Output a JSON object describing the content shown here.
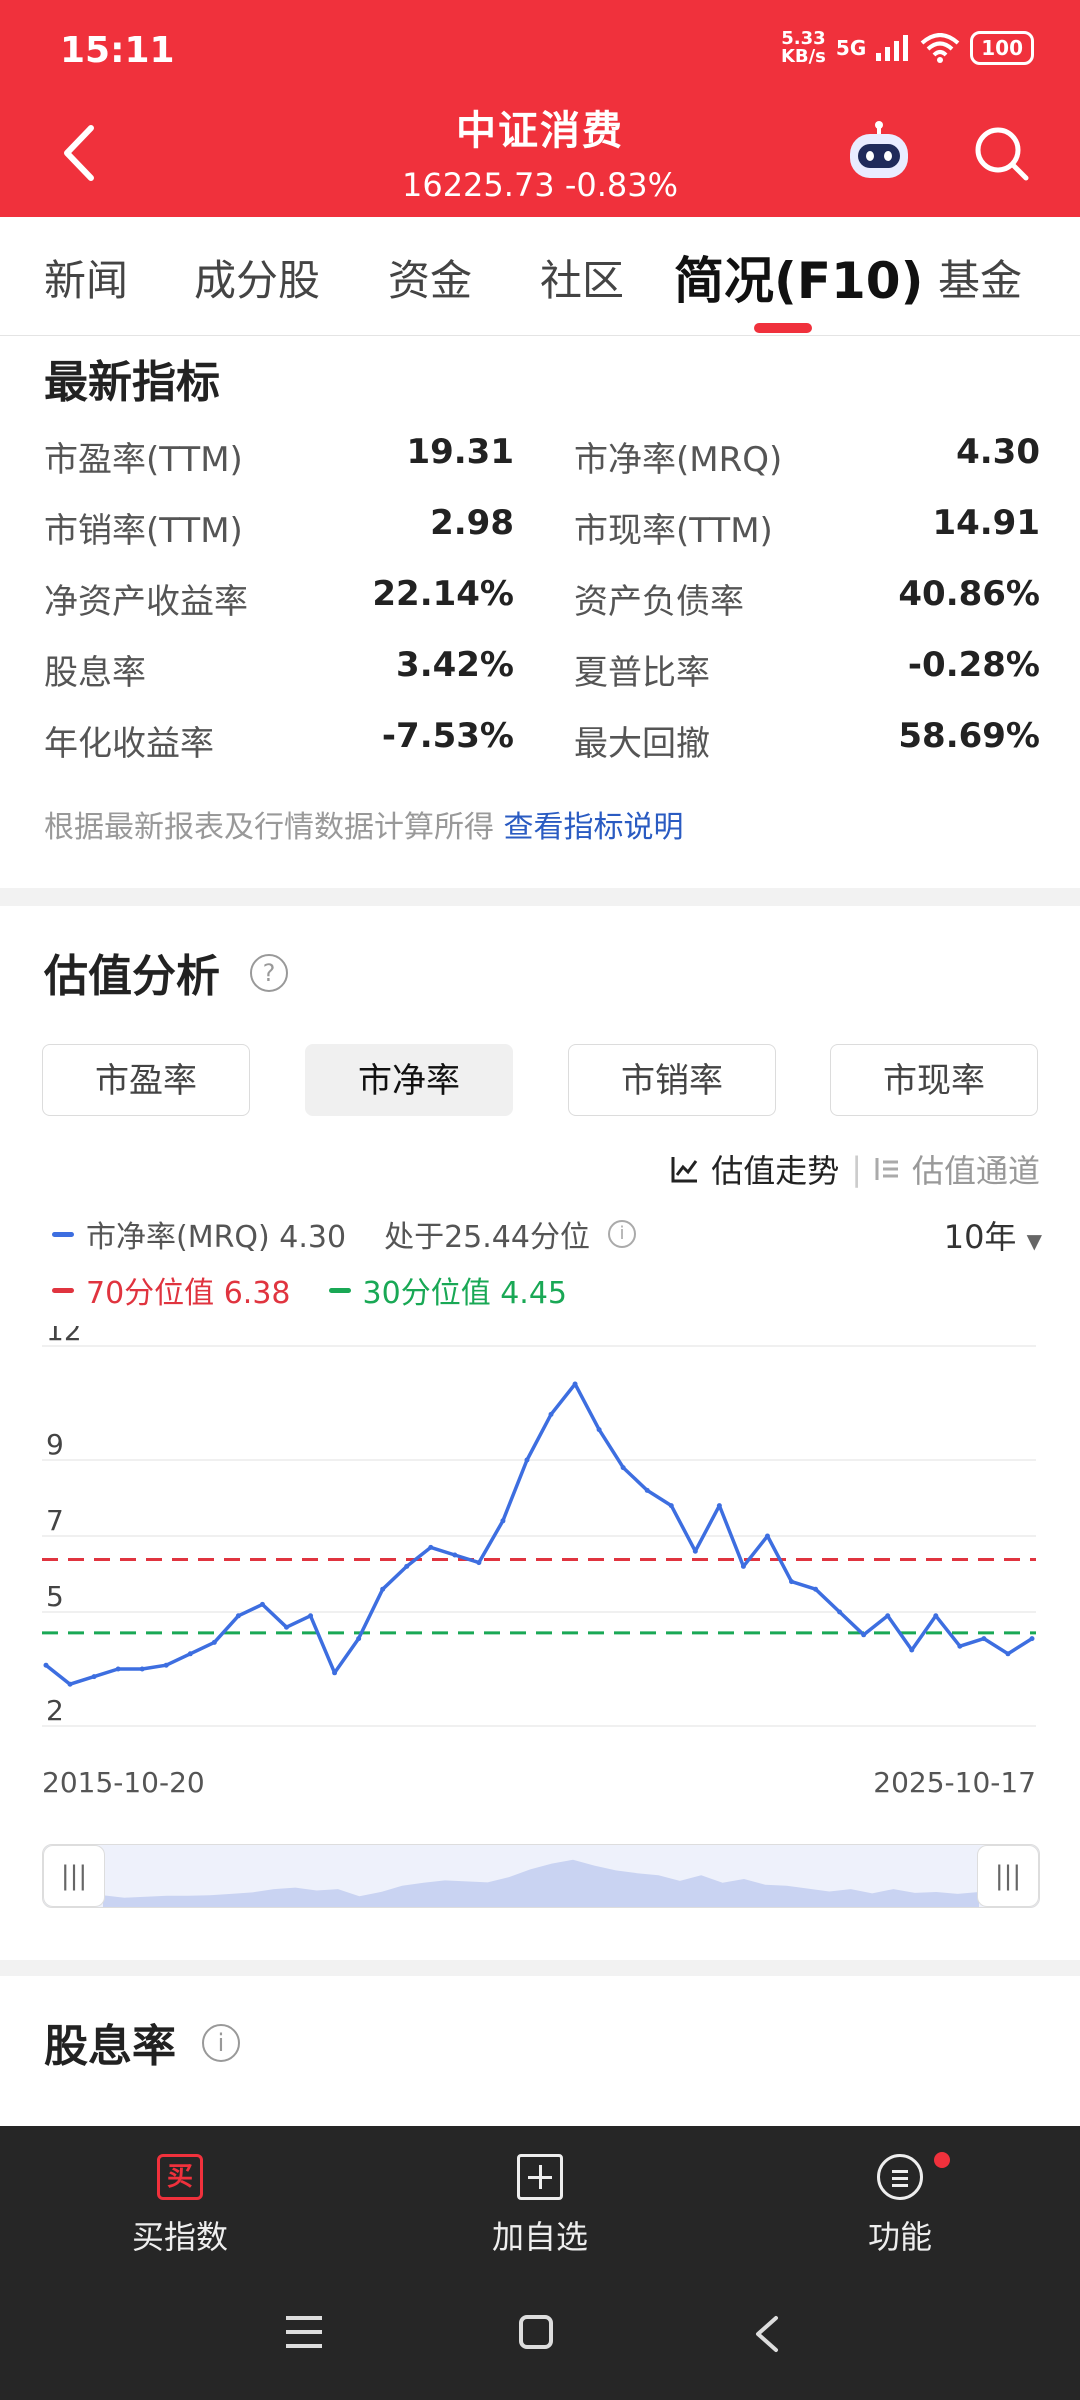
{
  "status": {
    "time": "15:11",
    "net_speed_value": "5.33",
    "net_speed_unit": "KB/s",
    "network": "5G",
    "battery": "100"
  },
  "header": {
    "title": "中证消费",
    "subtitle": "16225.73 -0.83%",
    "bg_color": "#f0313c"
  },
  "tabs": [
    {
      "label": "新闻",
      "active": false
    },
    {
      "label": "成分股",
      "active": false
    },
    {
      "label": "资金",
      "active": false
    },
    {
      "label": "社区",
      "active": false
    },
    {
      "label": "简况(F10)",
      "active": true
    },
    {
      "label": "基金",
      "active": false
    }
  ],
  "metrics": {
    "title": "最新指标",
    "rows": [
      {
        "l1": "市盈率(TTM)",
        "v1": "19.31",
        "l2": "市净率(MRQ)",
        "v2": "4.30"
      },
      {
        "l1": "市销率(TTM)",
        "v1": "2.98",
        "l2": "市现率(TTM)",
        "v2": "14.91"
      },
      {
        "l1": "净资产收益率",
        "v1": "22.14%",
        "l2": "资产负债率",
        "v2": "40.86%"
      },
      {
        "l1": "股息率",
        "v1": "3.42%",
        "l2": "夏普比率",
        "v2": "-0.28%"
      },
      {
        "l1": "年化收益率",
        "v1": "-7.53%",
        "l2": "最大回撤",
        "v2": "58.69%"
      }
    ],
    "note": "根据最新报表及行情数据计算所得",
    "note_link": "查看指标说明"
  },
  "valuation": {
    "title": "估值分析",
    "help": "?",
    "segments": [
      {
        "label": "市盈率",
        "active": false
      },
      {
        "label": "市净率",
        "active": true
      },
      {
        "label": "市销率",
        "active": false
      },
      {
        "label": "市现率",
        "active": false
      }
    ],
    "view_trend": "估值走势",
    "view_channel": "估值通道",
    "legend_series": "市净率(MRQ) 4.30",
    "legend_percentile": "处于25.44分位",
    "legend_p70": "70分位值 6.38",
    "legend_p30": "30分位值 4.45",
    "period": "10年",
    "date_start": "2015-10-20",
    "date_end": "2025-10-17",
    "nav_handle": "|||",
    "colors": {
      "series": "#3d6ee0",
      "p70": "#e0343f",
      "p30": "#19a855"
    }
  },
  "chart_data": {
    "type": "line",
    "y_ticks": [
      "12",
      "9",
      "7",
      "5",
      "2"
    ],
    "ylim": [
      2,
      12
    ],
    "x_start": "2015-10-20",
    "x_end": "2025-10-17",
    "reference_lines": [
      {
        "name": "70分位值",
        "value": 6.38
      },
      {
        "name": "30分位值",
        "value": 4.45
      }
    ],
    "series": [
      {
        "name": "市净率(MRQ)",
        "x": [
          "2015-10",
          "2016-01",
          "2016-04",
          "2016-07",
          "2016-10",
          "2017-01",
          "2017-04",
          "2017-07",
          "2017-10",
          "2018-01",
          "2018-04",
          "2018-07",
          "2018-10",
          "2019-01",
          "2019-04",
          "2019-07",
          "2019-10",
          "2020-01",
          "2020-04",
          "2020-07",
          "2020-10",
          "2021-01",
          "2021-02",
          "2021-04",
          "2021-07",
          "2021-10",
          "2022-01",
          "2022-04",
          "2022-07",
          "2022-10",
          "2023-01",
          "2023-04",
          "2023-07",
          "2023-10",
          "2024-01",
          "2024-04",
          "2024-07",
          "2024-10",
          "2025-01",
          "2025-04",
          "2025-07",
          "2025-10"
        ],
        "values": [
          3.6,
          3.1,
          3.3,
          3.5,
          3.5,
          3.6,
          3.9,
          4.2,
          4.9,
          5.2,
          4.6,
          4.9,
          3.4,
          4.3,
          5.6,
          6.2,
          6.7,
          6.5,
          6.3,
          7.4,
          9.0,
          10.2,
          11.0,
          9.8,
          8.8,
          8.2,
          7.8,
          6.6,
          7.8,
          6.2,
          7.0,
          5.8,
          5.6,
          5.0,
          4.4,
          4.9,
          4.0,
          4.9,
          4.1,
          4.3,
          3.9,
          4.3
        ]
      }
    ]
  },
  "dividend": {
    "title": "股息率",
    "help": "i"
  },
  "bottom": {
    "buy_icon": "买",
    "buy": "买指数",
    "add": "加自选",
    "func": "功能"
  }
}
